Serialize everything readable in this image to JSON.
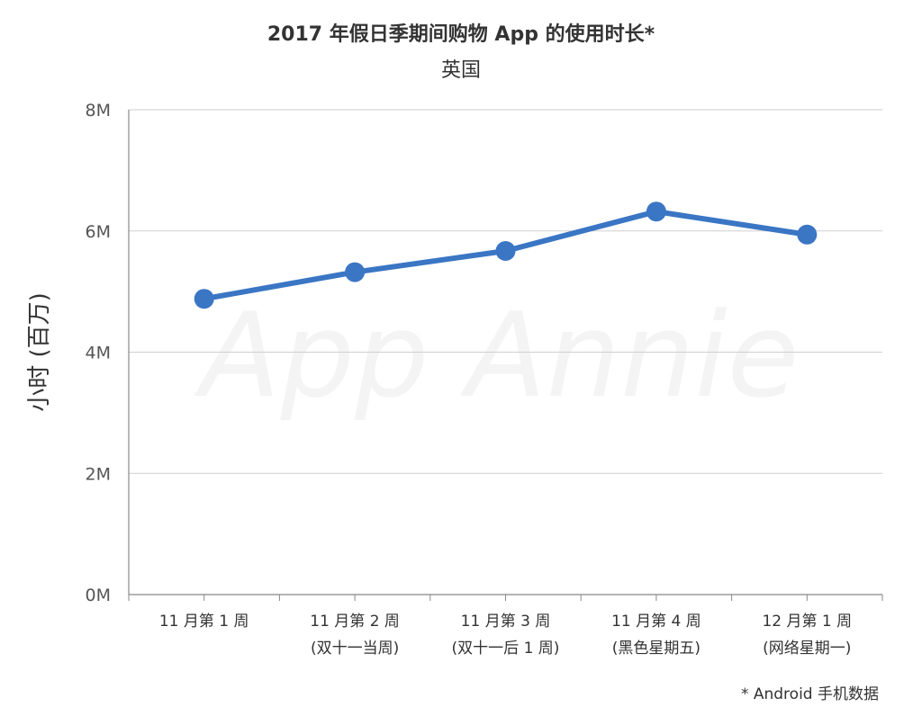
{
  "chart_data": {
    "type": "line",
    "title": "2017 年假日季期间购物 App 的使用时长*",
    "subtitle": "英国",
    "ylabel": "小时 (百万)",
    "xlabel": "",
    "categories": [
      [
        "11 月第 1 周"
      ],
      [
        "11 月第 2 周",
        "(双十一当周)"
      ],
      [
        "11 月第 3 周",
        "(双十一后 1 周)"
      ],
      [
        "11 月第 4 周",
        "(黑色星期五)"
      ],
      [
        "12 月第 1 周",
        "(网络星期一)"
      ]
    ],
    "values": [
      4.88,
      5.32,
      5.67,
      6.32,
      5.94
    ],
    "ylim": [
      0,
      8
    ],
    "yticks": [
      {
        "value": 0,
        "label": "0M"
      },
      {
        "value": 2,
        "label": "2M"
      },
      {
        "value": 4,
        "label": "4M"
      },
      {
        "value": 6,
        "label": "6M"
      },
      {
        "value": 8,
        "label": "8M"
      }
    ],
    "grid": true,
    "line_color": "#3a76c4",
    "footnote": "* Android 手机数据",
    "watermark": "App Annie"
  }
}
